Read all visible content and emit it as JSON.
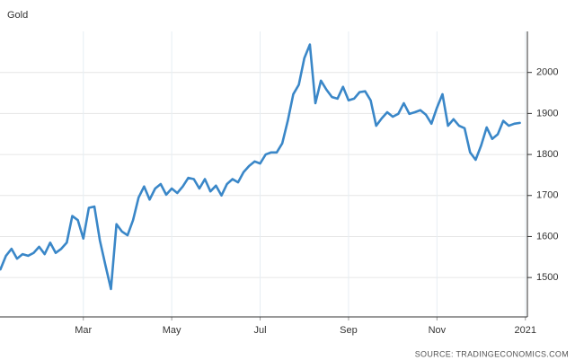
{
  "chart_data": {
    "type": "line",
    "title": "Gold",
    "source": "SOURCE: TRADINGECONOMICS.COM",
    "categories": [
      null,
      null,
      null,
      null,
      null,
      null,
      null,
      null,
      null,
      null,
      null,
      null,
      null,
      null,
      null,
      "Mar",
      null,
      null,
      null,
      null,
      null,
      null,
      null,
      null,
      null,
      null,
      null,
      null,
      null,
      null,
      null,
      "May",
      null,
      null,
      null,
      null,
      null,
      null,
      null,
      null,
      null,
      null,
      null,
      null,
      null,
      null,
      null,
      "Jul",
      null,
      null,
      null,
      null,
      null,
      null,
      null,
      null,
      null,
      null,
      null,
      null,
      null,
      null,
      null,
      "Sep",
      null,
      null,
      null,
      null,
      null,
      null,
      null,
      null,
      null,
      null,
      null,
      null,
      null,
      null,
      null,
      "Nov",
      null,
      null,
      null,
      null,
      null,
      null,
      null,
      null,
      null,
      null,
      null,
      null,
      null,
      null,
      null,
      "2021"
    ],
    "series": [
      {
        "name": "Gold",
        "color": "#3a87c8",
        "values": [
          1520,
          1553,
          1570,
          1546,
          1557,
          1553,
          1560,
          1575,
          1557,
          1585,
          1560,
          1570,
          1585,
          1650,
          1640,
          1595,
          1670,
          1673,
          1590,
          1530,
          1472,
          1630,
          1612,
          1603,
          1640,
          1695,
          1722,
          1690,
          1717,
          1728,
          1702,
          1717,
          1706,
          1722,
          1743,
          1740,
          1717,
          1740,
          1710,
          1724,
          1700,
          1728,
          1740,
          1732,
          1757,
          1772,
          1783,
          1778,
          1800,
          1805,
          1805,
          1827,
          1882,
          1947,
          1970,
          2035,
          2068,
          1925,
          1980,
          1958,
          1940,
          1936,
          1965,
          1932,
          1936,
          1952,
          1954,
          1932,
          1870,
          1888,
          1903,
          1892,
          1899,
          1925,
          1899,
          1903,
          1908,
          1897,
          1875,
          1914,
          1947,
          1870,
          1886,
          1870,
          1864,
          1805,
          1787,
          1822,
          1866,
          1838,
          1849,
          1882,
          1870,
          1875,
          1877,
          null
        ]
      }
    ],
    "ylim": [
      1404,
      2100
    ],
    "yticks": [
      1500,
      1600,
      1700,
      1800,
      1900,
      2000
    ],
    "grid": true,
    "y_axis_side": "right"
  }
}
